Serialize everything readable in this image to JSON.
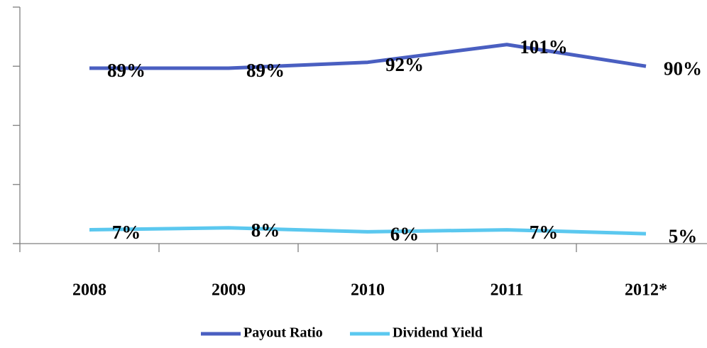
{
  "chart_data": {
    "type": "line",
    "categories": [
      "2008",
      "2009",
      "2010",
      "2011",
      "2012*"
    ],
    "series": [
      {
        "name": "Payout Ratio",
        "color": "#4a5fc1",
        "values": [
          89,
          89,
          92,
          101,
          90
        ],
        "value_labels": [
          "89%",
          "89%",
          "92%",
          "101%",
          "90%"
        ]
      },
      {
        "name": "Dividend Yield",
        "color": "#5bc8ef",
        "values": [
          7,
          8,
          6,
          7,
          5
        ],
        "value_labels": [
          "7%",
          "8%",
          "6%",
          "7%",
          "5%"
        ]
      }
    ],
    "ylim": [
      0,
      120
    ],
    "yticks": [
      0,
      30,
      60,
      90,
      120
    ],
    "grid": false,
    "legend": "bottom"
  }
}
